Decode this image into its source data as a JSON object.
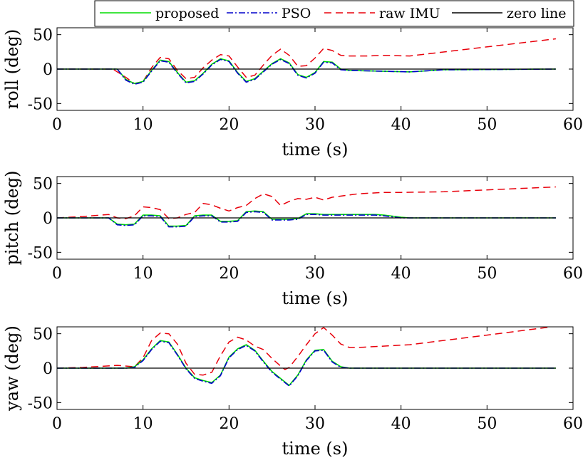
{
  "colors": {
    "proposed": "#00dd00",
    "pso": "#0000cc",
    "raw": "#e8000b",
    "zero": "#000000"
  },
  "chart_data": [
    {
      "type": "line",
      "ylabel": "roll (deg)",
      "xlabel": "time (s)",
      "xlim": [
        0,
        60
      ],
      "ylim": [
        -60,
        60
      ],
      "xticks": [
        "0",
        "10",
        "20",
        "30",
        "40",
        "50",
        "60"
      ],
      "yticks": [
        "-50",
        "0",
        "50"
      ],
      "legend": {
        "position": "top",
        "entries": [
          "proposed",
          "PSO",
          "raw IMU",
          "zero line"
        ]
      },
      "series": [
        {
          "name": "proposed",
          "x": [
            0,
            5,
            7,
            8,
            9,
            10,
            11,
            12,
            13,
            14,
            15,
            16,
            17,
            18,
            19,
            20,
            21,
            22,
            23,
            24,
            25,
            26,
            27,
            28,
            29,
            30,
            31,
            32,
            33,
            34,
            41,
            45,
            58
          ],
          "y": [
            0,
            0,
            0,
            -15,
            -21,
            -18,
            -2,
            13,
            11,
            -5,
            -19,
            -17,
            -6,
            7,
            15,
            12,
            -5,
            -18,
            -14,
            -3,
            8,
            15,
            9,
            -8,
            -12,
            -5,
            11,
            10,
            0,
            -2,
            -4,
            -1,
            0
          ]
        },
        {
          "name": "PSO",
          "x": [
            0,
            5,
            7,
            8,
            9,
            10,
            11,
            12,
            13,
            14,
            15,
            16,
            17,
            18,
            19,
            20,
            21,
            22,
            23,
            24,
            25,
            26,
            27,
            28,
            29,
            30,
            31,
            32,
            33,
            34,
            41,
            45,
            58
          ],
          "y": [
            0,
            0,
            0,
            -16,
            -22,
            -19,
            -3,
            12,
            10,
            -6,
            -20,
            -18,
            -7,
            6,
            14,
            11,
            -6,
            -19,
            -15,
            -4,
            7,
            14,
            8,
            -9,
            -13,
            -6,
            10,
            9,
            -1,
            -2,
            -4,
            -1,
            0
          ]
        },
        {
          "name": "raw IMU",
          "x": [
            0,
            5,
            6.5,
            8,
            9,
            10,
            11,
            12,
            13,
            14,
            15,
            16,
            17,
            18,
            19,
            20,
            21,
            22,
            23,
            24,
            25,
            26,
            27,
            28,
            29,
            30,
            31,
            32,
            33,
            34,
            36,
            38,
            41,
            58
          ],
          "y": [
            0,
            0,
            0,
            -12,
            -21,
            -18,
            2,
            17,
            15,
            -2,
            -14,
            -12,
            2,
            13,
            21,
            19,
            3,
            -12,
            -9,
            6,
            20,
            29,
            20,
            4,
            5,
            16,
            30,
            27,
            20,
            19,
            19,
            20,
            19,
            44
          ]
        },
        {
          "name": "zero line",
          "x": [
            0,
            58
          ],
          "y": [
            0,
            0
          ]
        }
      ]
    },
    {
      "type": "line",
      "ylabel": "pitch (deg)",
      "xlabel": "time (s)",
      "xlim": [
        0,
        60
      ],
      "ylim": [
        -60,
        60
      ],
      "xticks": [
        "0",
        "10",
        "20",
        "30",
        "40",
        "50",
        "60"
      ],
      "yticks": [
        "-50",
        "0",
        "50"
      ],
      "series": [
        {
          "name": "proposed",
          "x": [
            0,
            6,
            7,
            8,
            9,
            10,
            11,
            12,
            13,
            14,
            15,
            16,
            17,
            18,
            19,
            20,
            21,
            22,
            23,
            24,
            25,
            26,
            27,
            28,
            29,
            30,
            31,
            37,
            38,
            40,
            41,
            58
          ],
          "y": [
            0,
            0,
            -9,
            -10,
            -9,
            4,
            4,
            3,
            -12,
            -12,
            -11,
            3,
            4,
            4,
            -5,
            -5,
            -4,
            9,
            10,
            9,
            -2,
            -2,
            -2,
            -1,
            6,
            6,
            5,
            5,
            4,
            1,
            0,
            0
          ]
        },
        {
          "name": "PSO",
          "x": [
            0,
            6,
            7,
            8,
            9,
            10,
            11,
            12,
            13,
            14,
            15,
            16,
            17,
            18,
            19,
            20,
            21,
            22,
            23,
            24,
            25,
            26,
            27,
            28,
            29,
            30,
            31,
            37,
            38,
            40,
            41,
            58
          ],
          "y": [
            0,
            0,
            -10,
            -11,
            -10,
            3,
            3,
            2,
            -13,
            -13,
            -12,
            2,
            3,
            3,
            -6,
            -6,
            -5,
            8,
            9,
            8,
            -3,
            -3,
            -3,
            -2,
            5,
            5,
            4,
            4,
            3,
            0,
            0,
            0
          ]
        },
        {
          "name": "raw IMU",
          "x": [
            0,
            3,
            6,
            7,
            8,
            9,
            10,
            11,
            12,
            13,
            14,
            15,
            16,
            17,
            18,
            19,
            20,
            21,
            22,
            23,
            24,
            25,
            26,
            27,
            28,
            29,
            30,
            31,
            32,
            35,
            38,
            40,
            45,
            58
          ],
          "y": [
            0,
            2,
            5,
            0,
            -1,
            3,
            16,
            15,
            12,
            -1,
            0,
            5,
            8,
            21,
            19,
            14,
            10,
            15,
            18,
            28,
            35,
            31,
            18,
            24,
            28,
            27,
            30,
            26,
            30,
            35,
            37,
            37,
            38,
            45
          ]
        },
        {
          "name": "zero line",
          "x": [
            0,
            58
          ],
          "y": [
            0,
            0
          ]
        }
      ]
    },
    {
      "type": "line",
      "ylabel": "yaw (deg)",
      "xlabel": "time (s)",
      "xlim": [
        0,
        60
      ],
      "ylim": [
        -60,
        60
      ],
      "xticks": [
        "0",
        "10",
        "20",
        "30",
        "40",
        "50",
        "60"
      ],
      "yticks": [
        "-50",
        "0",
        "50"
      ],
      "series": [
        {
          "name": "proposed",
          "x": [
            0,
            8,
            9,
            10,
            11,
            12,
            13,
            14,
            15,
            16,
            17,
            18,
            19,
            20,
            21,
            22,
            23,
            24,
            25,
            26,
            27,
            28,
            29,
            30,
            31,
            32,
            33,
            34,
            58
          ],
          "y": [
            0,
            0,
            2,
            12,
            28,
            40,
            38,
            20,
            0,
            -14,
            -18,
            -21,
            -10,
            16,
            28,
            34,
            26,
            10,
            -5,
            -15,
            -25,
            -10,
            12,
            26,
            27,
            10,
            2,
            0,
            0
          ]
        },
        {
          "name": "PSO",
          "x": [
            0,
            8,
            9,
            10,
            11,
            12,
            13,
            14,
            15,
            16,
            17,
            18,
            19,
            20,
            21,
            22,
            23,
            24,
            25,
            26,
            27,
            28,
            29,
            30,
            31,
            32,
            33,
            34,
            58
          ],
          "y": [
            0,
            0,
            1,
            11,
            27,
            39,
            37,
            19,
            -1,
            -15,
            -19,
            -22,
            -11,
            15,
            27,
            33,
            25,
            9,
            -6,
            -16,
            -26,
            -11,
            11,
            25,
            26,
            9,
            1,
            0,
            0
          ]
        },
        {
          "name": "raw IMU",
          "x": [
            0,
            3,
            7,
            9,
            10,
            11,
            12,
            13,
            14,
            15,
            16,
            17,
            18,
            19,
            20,
            21,
            22,
            23,
            24,
            25,
            26,
            26.5,
            27,
            28,
            29,
            30,
            31,
            32,
            33,
            34,
            35,
            41,
            50,
            57.5
          ],
          "y": [
            0,
            1,
            4,
            2,
            15,
            40,
            51,
            50,
            35,
            7,
            -9,
            -10,
            -6,
            18,
            38,
            45,
            41,
            32,
            27,
            14,
            3,
            -2,
            1,
            17,
            34,
            50,
            59,
            48,
            35,
            30,
            30,
            34,
            48,
            60
          ]
        },
        {
          "name": "zero line",
          "x": [
            0,
            58
          ],
          "y": [
            0,
            0
          ]
        }
      ]
    }
  ]
}
